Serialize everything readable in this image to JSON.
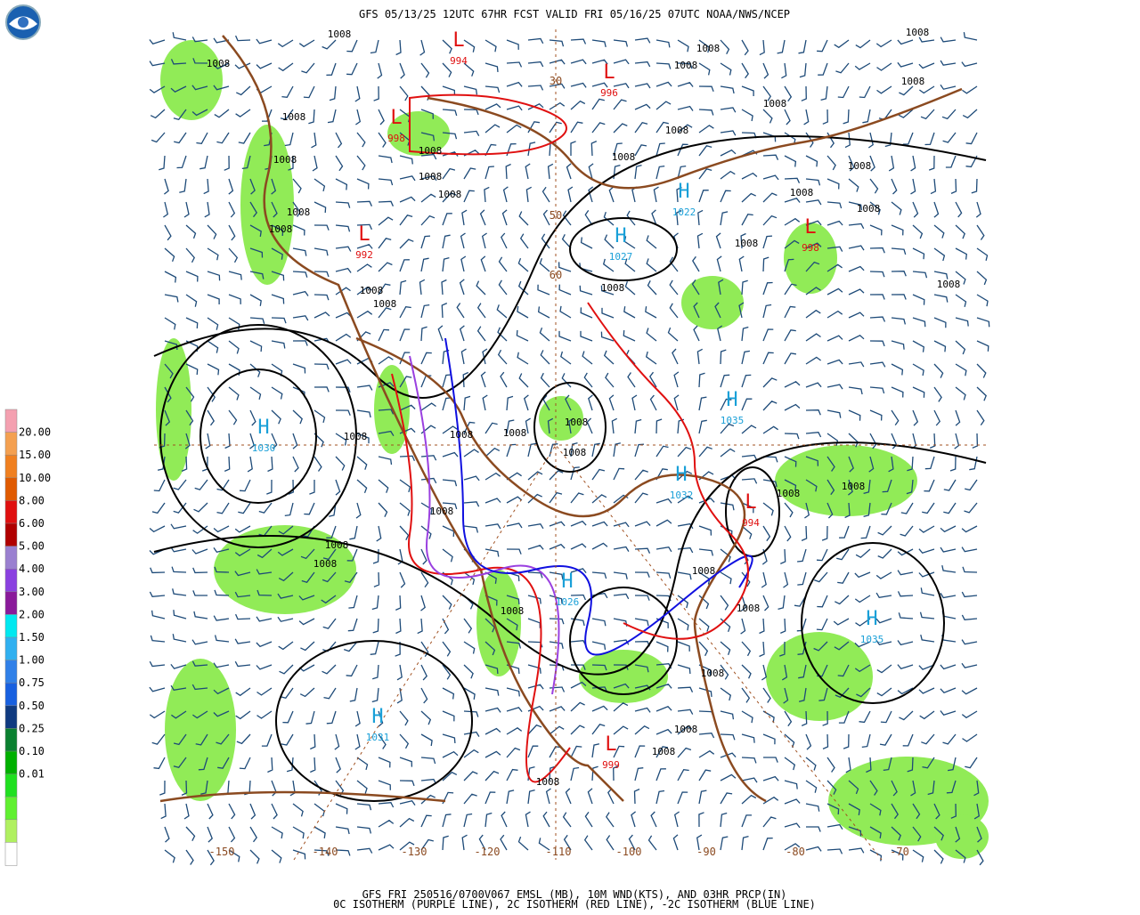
{
  "header": {
    "title": "GFS 05/13/25 12UTC 67HR FCST VALID FRI 05/16/25 07UTC NOAA/NWS/NCEP"
  },
  "legend": {
    "colors": [
      "#f4a0b0",
      "#f4a050",
      "#f08020",
      "#e05a00",
      "#e01010",
      "#b00000",
      "#9a80d0",
      "#8a40e0",
      "#8a1a9a",
      "#00e8f0",
      "#30b0f0",
      "#3080e8",
      "#1860e0",
      "#103a80",
      "#0a8030",
      "#00b000",
      "#20e020",
      "#60f030",
      "#b0f060",
      "#ffffff"
    ],
    "labels": [
      "20.00",
      "15.00",
      "10.00",
      "8.00",
      "6.00",
      "5.00",
      "4.00",
      "3.00",
      "2.00",
      "1.50",
      "1.00",
      "0.75",
      "0.50",
      "0.25",
      "0.10",
      "0.01"
    ]
  },
  "map": {
    "longitude_labels": [
      "-150",
      "-140",
      "-130",
      "-120",
      "-110",
      "-100",
      "-90",
      "-80",
      "-70"
    ],
    "latitude_labels": [
      "30",
      "50",
      "60"
    ],
    "centers": [
      {
        "symbol": "H",
        "pressure": "1030"
      },
      {
        "symbol": "H",
        "pressure": "1031"
      },
      {
        "symbol": "H",
        "pressure": "1035"
      },
      {
        "symbol": "H",
        "pressure": "1035"
      },
      {
        "symbol": "H",
        "pressure": "1032"
      },
      {
        "symbol": "H",
        "pressure": "1027"
      },
      {
        "symbol": "H",
        "pressure": "1022"
      },
      {
        "symbol": "H",
        "pressure": "1026"
      },
      {
        "symbol": "L",
        "pressure": "998"
      },
      {
        "symbol": "L",
        "pressure": "996"
      },
      {
        "symbol": "L",
        "pressure": "992"
      },
      {
        "symbol": "L",
        "pressure": "998"
      },
      {
        "symbol": "L",
        "pressure": "994"
      },
      {
        "symbol": "L",
        "pressure": "999"
      },
      {
        "symbol": "L",
        "pressure": "994"
      }
    ],
    "isobar_label": "1008"
  },
  "footer": {
    "lines": [
      "GFS FRI 250516/0700V067 EMSL (MB), 10M WND(KTS), AND 03HR PRCP(IN)",
      "0C ISOTHERM (PURPLE LINE), 2C ISOTHERM (RED LINE), -2C ISOTHERM (BLUE LINE)"
    ]
  }
}
